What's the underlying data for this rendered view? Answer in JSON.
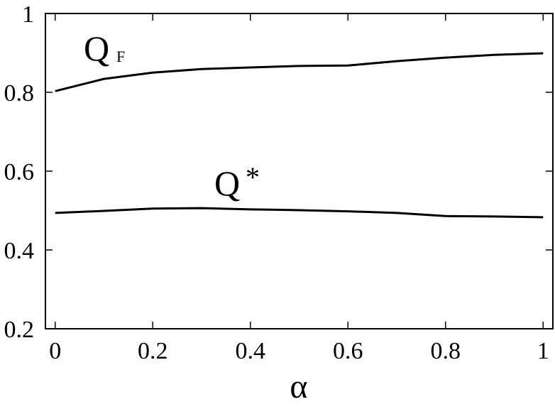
{
  "chart_data": {
    "type": "line",
    "x_label": "α",
    "x": [
      0,
      0.1,
      0.2,
      0.3,
      0.4,
      0.5,
      0.6,
      0.7,
      0.8,
      0.9,
      1
    ],
    "series": [
      {
        "color": "#000000",
        "values": [
          0.803,
          0.834,
          0.85,
          0.859,
          0.863,
          0.867,
          0.868,
          0.879,
          0.888,
          0.895,
          0.899
        ]
      },
      {
        "color": "#000000",
        "values": [
          0.494,
          0.499,
          0.505,
          0.506,
          0.503,
          0.501,
          0.498,
          0.494,
          0.486,
          0.485,
          0.483
        ]
      }
    ],
    "annotations": [
      {
        "text": "Q",
        "subscript": "F"
      },
      {
        "text": "Q",
        "superscript": "*"
      }
    ],
    "xlim": [
      -0.02,
      1.02
    ],
    "xticks": [
      0,
      0.2,
      0.4,
      0.6,
      0.8,
      1
    ],
    "ylim": [
      0.2,
      1
    ],
    "yticks": [
      0.2,
      0.4,
      0.6,
      0.8,
      1
    ]
  }
}
